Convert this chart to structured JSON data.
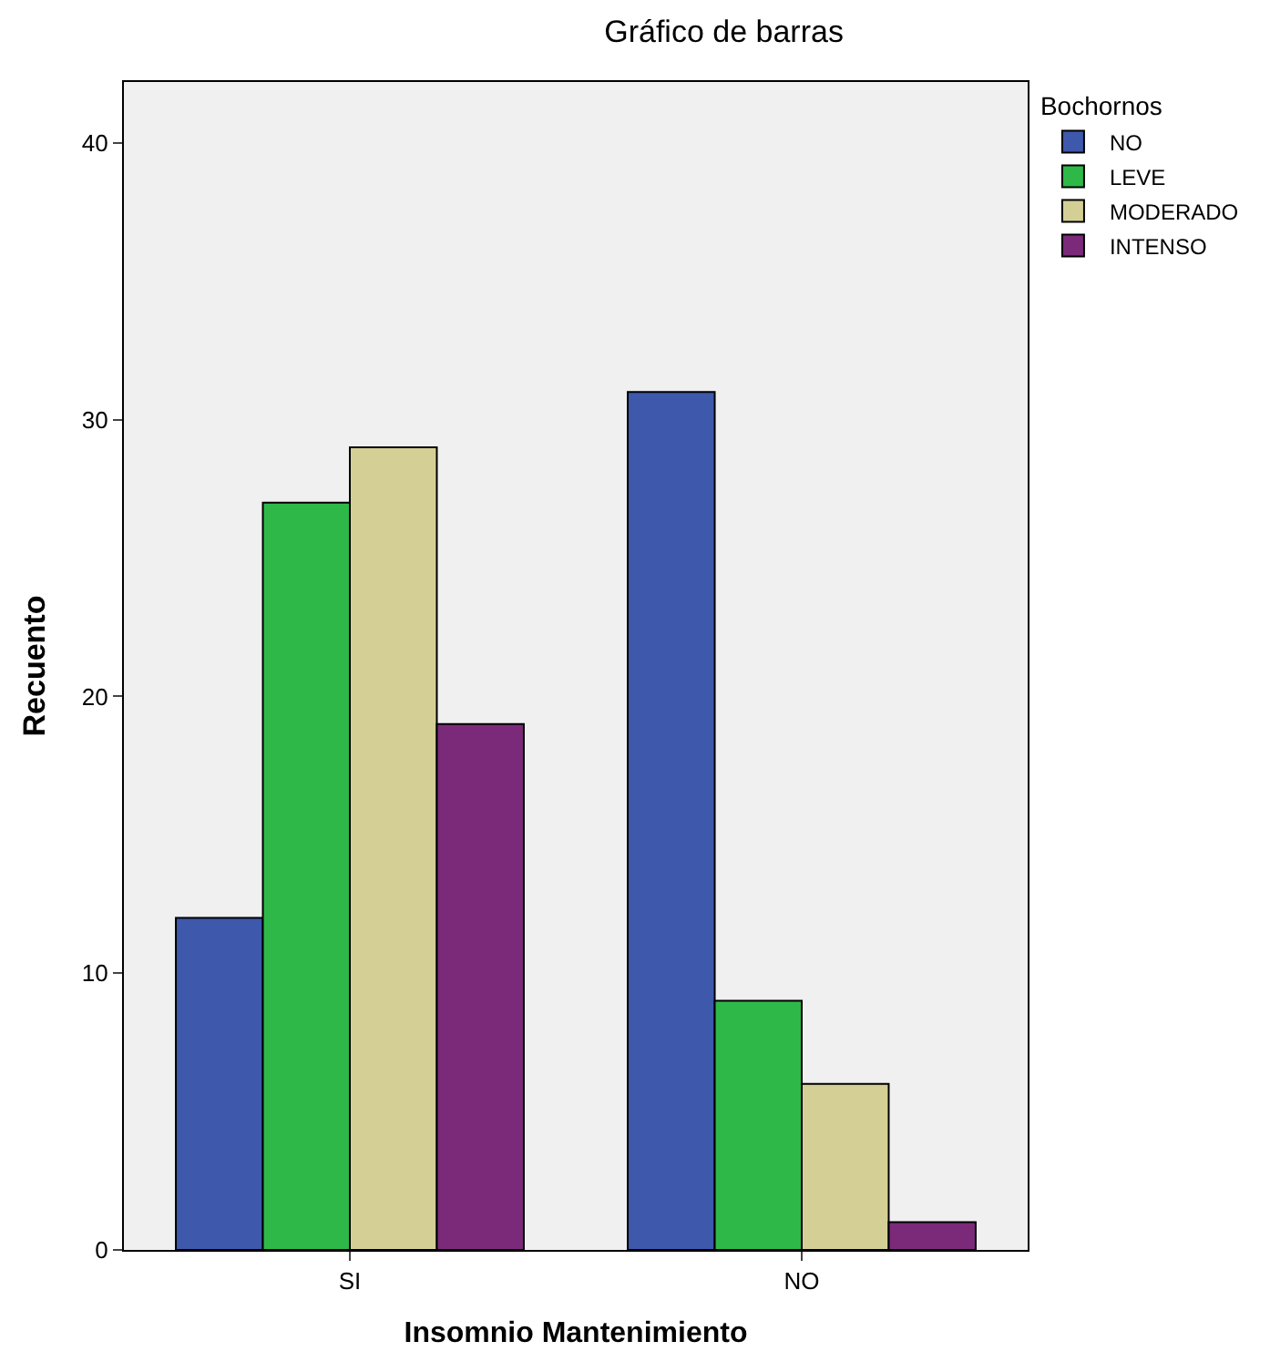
{
  "chart_data": {
    "type": "bar",
    "title": "Gráfico de barras",
    "xlabel": "Insomnio Mantenimiento",
    "ylabel": "Recuento",
    "legend_title": "Bochornos",
    "categories": [
      "SI",
      "NO"
    ],
    "series": [
      {
        "name": "NO",
        "color": "#3e58ac",
        "values": [
          12,
          31
        ]
      },
      {
        "name": "LEVE",
        "color": "#2eb848",
        "values": [
          27,
          9
        ]
      },
      {
        "name": "MODERADO",
        "color": "#d4cf95",
        "values": [
          29,
          6
        ]
      },
      {
        "name": "INTENSO",
        "color": "#7b2a79",
        "values": [
          19,
          1
        ]
      }
    ],
    "ylim": [
      0,
      42.2
    ],
    "yticks": [
      0,
      10,
      20,
      30,
      40
    ],
    "grid": false,
    "legend": "top right"
  }
}
